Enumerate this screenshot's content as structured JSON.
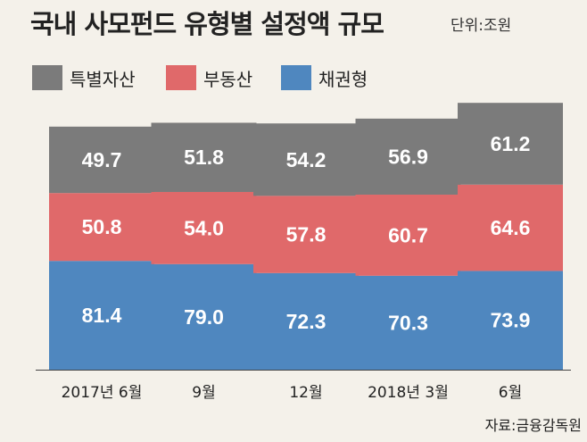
{
  "header": {
    "title": "국내 사모펀드 유형별 설정액 규모",
    "unit": "단위:조원"
  },
  "source": "자료:금융감독원",
  "colors": {
    "special_assets": "#7b7b7b",
    "real_estate": "#e0696a",
    "bond": "#4f87bf",
    "background": "#f4f1ea"
  },
  "chart_data": {
    "type": "bar",
    "stacked": true,
    "title": "국내 사모펀드 유형별 설정액 규모",
    "unit": "조원",
    "categories": [
      "2017년 6월",
      "9월",
      "12월",
      "2018년 3월",
      "6월"
    ],
    "series": [
      {
        "name": "채권형",
        "color": "#4f87bf",
        "values": [
          81.4,
          79.0,
          72.3,
          70.3,
          73.9
        ],
        "labels": [
          "81.4",
          "79.0",
          "72.3",
          "70.3",
          "73.9"
        ]
      },
      {
        "name": "부동산",
        "color": "#e0696a",
        "values": [
          50.8,
          54.0,
          57.8,
          60.7,
          64.6
        ],
        "labels": [
          "50.8",
          "54.0",
          "57.8",
          "60.7",
          "64.6"
        ]
      },
      {
        "name": "특별자산",
        "color": "#7b7b7b",
        "values": [
          49.7,
          51.8,
          54.2,
          56.9,
          61.2
        ],
        "labels": [
          "49.7",
          "51.8",
          "54.2",
          "56.9",
          "61.2"
        ]
      }
    ],
    "legend": [
      "특별자산",
      "부동산",
      "채권형"
    ],
    "legend_position": "top-left",
    "xlabel": "",
    "ylabel": "",
    "grid": false
  }
}
